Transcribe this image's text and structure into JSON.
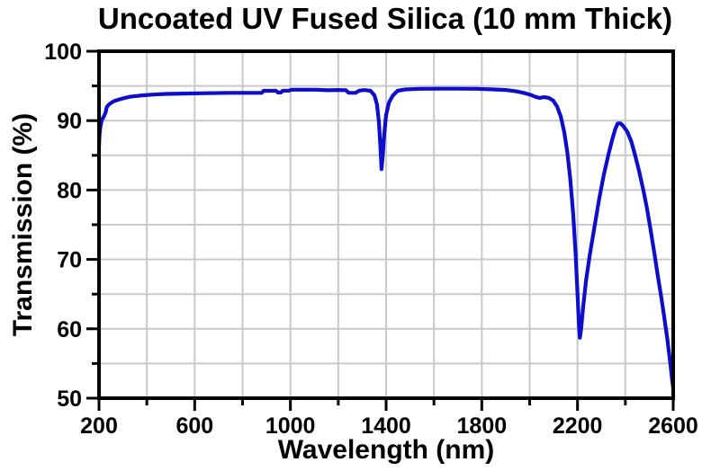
{
  "title": "Uncoated UV Fused Silica (10 mm Thick)",
  "colors": {
    "curve": "#0D0DCB",
    "grid": "#C9C9C9",
    "axis": "#000000",
    "background": "#FFFFFF"
  },
  "chart_data": {
    "type": "line",
    "title": "Uncoated UV Fused Silica (10 mm Thick)",
    "xlabel": "Wavelength (nm)",
    "ylabel": "Transmission (%)",
    "xlim": [
      200,
      2600
    ],
    "ylim": [
      50,
      100
    ],
    "x_major_ticks": [
      200,
      600,
      1000,
      1400,
      1800,
      2200,
      2600
    ],
    "x_minor_ticks": [
      400,
      800,
      1200,
      1600,
      2000,
      2400
    ],
    "y_major_ticks": [
      100,
      90,
      80,
      70,
      60,
      50
    ],
    "y_minor_ticks": [
      95,
      85,
      75,
      65,
      55
    ],
    "grid": true,
    "grid_step_x": 200,
    "grid_step_y": 5,
    "legend_position": "none",
    "series": [
      {
        "name": "Transmission",
        "color": "#0D0DCB",
        "points": [
          [
            200,
            86.3
          ],
          [
            202,
            87.8
          ],
          [
            205,
            88.9
          ],
          [
            210,
            89.9
          ],
          [
            215,
            90.3
          ],
          [
            222,
            90.7
          ],
          [
            228,
            91.2
          ],
          [
            232,
            91.9
          ],
          [
            238,
            92.2
          ],
          [
            248,
            92.5
          ],
          [
            262,
            92.8
          ],
          [
            280,
            93.0
          ],
          [
            300,
            93.2
          ],
          [
            330,
            93.45
          ],
          [
            370,
            93.6
          ],
          [
            420,
            93.75
          ],
          [
            480,
            93.85
          ],
          [
            550,
            93.9
          ],
          [
            650,
            93.95
          ],
          [
            750,
            94.0
          ],
          [
            880,
            94.0
          ],
          [
            888,
            94.3
          ],
          [
            940,
            94.3
          ],
          [
            948,
            94.05
          ],
          [
            960,
            94.05
          ],
          [
            968,
            94.3
          ],
          [
            995,
            94.32
          ],
          [
            1005,
            94.45
          ],
          [
            1100,
            94.45
          ],
          [
            1160,
            94.38
          ],
          [
            1200,
            94.42
          ],
          [
            1232,
            94.38
          ],
          [
            1243,
            94.02
          ],
          [
            1272,
            94.0
          ],
          [
            1288,
            94.32
          ],
          [
            1310,
            94.4
          ],
          [
            1335,
            94.3
          ],
          [
            1352,
            93.6
          ],
          [
            1362,
            92.3
          ],
          [
            1370,
            89.8
          ],
          [
            1376,
            86.5
          ],
          [
            1381,
            83.0
          ],
          [
            1386,
            85.0
          ],
          [
            1392,
            88.0
          ],
          [
            1400,
            90.8
          ],
          [
            1412,
            92.6
          ],
          [
            1428,
            93.6
          ],
          [
            1448,
            94.3
          ],
          [
            1480,
            94.5
          ],
          [
            1540,
            94.58
          ],
          [
            1620,
            94.6
          ],
          [
            1700,
            94.6
          ],
          [
            1780,
            94.58
          ],
          [
            1850,
            94.5
          ],
          [
            1900,
            94.42
          ],
          [
            1940,
            94.25
          ],
          [
            1975,
            94.0
          ],
          [
            2005,
            93.7
          ],
          [
            2025,
            93.42
          ],
          [
            2042,
            93.28
          ],
          [
            2060,
            93.38
          ],
          [
            2080,
            93.28
          ],
          [
            2098,
            92.9
          ],
          [
            2115,
            92.0
          ],
          [
            2130,
            90.6
          ],
          [
            2145,
            88.3
          ],
          [
            2158,
            85.3
          ],
          [
            2170,
            81.5
          ],
          [
            2182,
            76.5
          ],
          [
            2192,
            71.0
          ],
          [
            2200,
            65.0
          ],
          [
            2206,
            60.5
          ],
          [
            2210,
            58.7
          ],
          [
            2215,
            60.0
          ],
          [
            2224,
            63.2
          ],
          [
            2236,
            67.0
          ],
          [
            2252,
            70.8
          ],
          [
            2270,
            74.5
          ],
          [
            2290,
            78.6
          ],
          [
            2310,
            82.2
          ],
          [
            2330,
            85.2
          ],
          [
            2346,
            87.4
          ],
          [
            2358,
            88.8
          ],
          [
            2368,
            89.6
          ],
          [
            2380,
            89.6
          ],
          [
            2392,
            89.2
          ],
          [
            2408,
            88.4
          ],
          [
            2425,
            87.0
          ],
          [
            2441,
            85.0
          ],
          [
            2458,
            82.6
          ],
          [
            2475,
            80.0
          ],
          [
            2490,
            77.4
          ],
          [
            2505,
            74.4
          ],
          [
            2520,
            71.2
          ],
          [
            2535,
            67.8
          ],
          [
            2550,
            64.6
          ],
          [
            2562,
            61.8
          ],
          [
            2575,
            58.6
          ],
          [
            2588,
            55.0
          ],
          [
            2596,
            52.5
          ],
          [
            2600,
            51.5
          ]
        ]
      }
    ]
  }
}
